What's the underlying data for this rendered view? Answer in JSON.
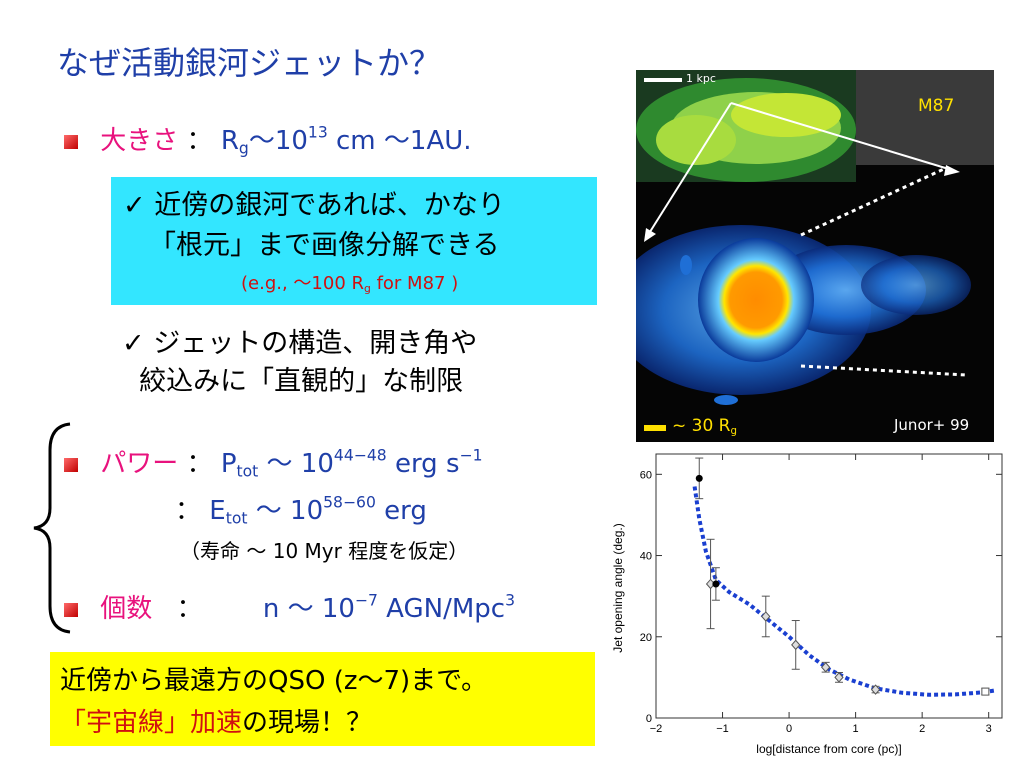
{
  "slide": {
    "title": "なぜ活動銀河ジェットか？",
    "size": {
      "label": "大きさ",
      "colon": "：",
      "rg_symbol": "R",
      "rg_sub": "g",
      "tilde1": "〜10",
      "exp1": "13",
      "unit1": " cm  〜1AU."
    },
    "box1": {
      "line1": "✓ 近傍の銀河であれば、かなり",
      "line2": "「根元」まで画像分解できる",
      "note_pre": "(e.g., 〜100 R",
      "note_sub": "g",
      "note_post": " for M87 )"
    },
    "check2": {
      "line1": "✓ ジェットの構造、開き角や",
      "line2": "  絞込みに「直観的」な制限"
    },
    "power": {
      "label": "パワー",
      "colon": "：",
      "p_symbol": "P",
      "p_sub": "tot",
      "tilde": " 〜 10",
      "p_exp": "44−48",
      "p_unit": " erg s",
      "p_unit_exp": "−1",
      "e_colon": "：",
      "e_symbol": "E",
      "e_sub": "tot",
      "e_tilde": " 〜  10",
      "e_exp": "58−60",
      "e_unit": " erg",
      "lifetime": "（寿命 〜 10 Myr 程度を仮定）"
    },
    "number": {
      "label": "個数",
      "colon": "：",
      "n_pre": "n 〜 10",
      "n_exp": "−7",
      "n_post": " AGN/Mpc",
      "n_exp2": "3"
    },
    "box2": {
      "line1": "近傍から最遠方のQSO (z〜7)まで。",
      "line2_red": "「宇宙線」加速",
      "line2_black": "の現場！？"
    }
  },
  "image_panel": {
    "scale_label": "1 kpc",
    "object": "M87",
    "bottom_scale_pre": "~ 30 R",
    "bottom_scale_sub": "g",
    "credit": "Junor+ 99",
    "colors": {
      "object_label": "#ffe000",
      "background": "#1a1a1a"
    }
  },
  "chart_data": {
    "type": "scatter",
    "xlabel": "log[distance from core (pc)]",
    "ylabel": "Jet opening angle (deg.)",
    "xlim": [
      -2,
      3.2
    ],
    "ylim": [
      0,
      65
    ],
    "xticks": [
      -2,
      -1,
      0,
      1,
      2,
      3
    ],
    "yticks": [
      0,
      20,
      40,
      60
    ],
    "points": [
      {
        "x": -1.35,
        "y": 59,
        "err": 5,
        "marker": "filled-circle"
      },
      {
        "x": -1.18,
        "y": 33,
        "err": 11,
        "marker": "open-diamond"
      },
      {
        "x": -1.1,
        "y": 33,
        "err": 4,
        "marker": "filled-circle"
      },
      {
        "x": -0.35,
        "y": 25,
        "err": 5,
        "marker": "open-diamond"
      },
      {
        "x": 0.1,
        "y": 18,
        "err": 6,
        "marker": "open-diamond"
      },
      {
        "x": 0.55,
        "y": 12.5,
        "err": 1.2,
        "marker": "open-diamond"
      },
      {
        "x": 0.75,
        "y": 10,
        "err": 1.2,
        "marker": "open-diamond"
      },
      {
        "x": 1.3,
        "y": 7,
        "err": 0.8,
        "marker": "open-diamond"
      },
      {
        "x": 2.95,
        "y": 6.5,
        "err": 0.8,
        "marker": "open-square"
      }
    ],
    "fit_curve": [
      [
        -1.42,
        57
      ],
      [
        -1.35,
        49
      ],
      [
        -1.25,
        41
      ],
      [
        -1.1,
        34
      ],
      [
        -0.9,
        31
      ],
      [
        -0.6,
        28
      ],
      [
        -0.3,
        24
      ],
      [
        0,
        20
      ],
      [
        0.3,
        15.5
      ],
      [
        0.6,
        12
      ],
      [
        0.9,
        9.5
      ],
      [
        1.3,
        7.3
      ],
      [
        1.7,
        6.2
      ],
      [
        2.1,
        5.7
      ],
      [
        2.5,
        5.8
      ],
      [
        2.9,
        6.3
      ],
      [
        3.1,
        6.8
      ]
    ],
    "grid": false,
    "colors": {
      "fit": "#1a3fd0",
      "points": "#555555",
      "filled": "#000000"
    }
  }
}
